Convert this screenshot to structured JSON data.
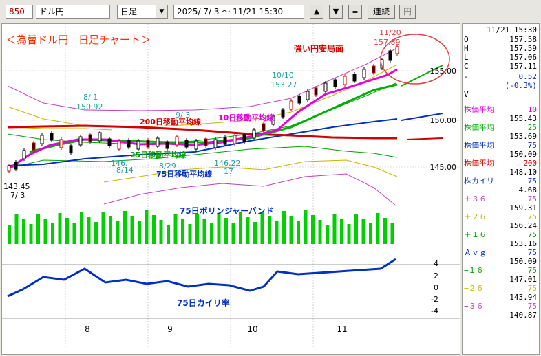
{
  "toolbar": {
    "code": "850",
    "pair": "ドル円",
    "period": "日足",
    "range": "2025/ 7/ 3 〜 11/21 15:30",
    "up_label": "▲",
    "down_label": "▼",
    "menu_label": "≡",
    "continuous_label": "連続",
    "yen_label": "円"
  },
  "panel": {
    "timestamp": "11/21 15:30",
    "ohlc": [
      {
        "k": "O",
        "v": "157.58"
      },
      {
        "k": "H",
        "v": "157.59"
      },
      {
        "k": "L",
        "v": "157.06"
      },
      {
        "k": "C",
        "v": "157.11"
      },
      {
        "k": "V",
        "v": ""
      }
    ],
    "change": "0.52",
    "change_pct": "(-0.3%)",
    "v_label": "V",
    "indicators": [
      {
        "label": "株価平均",
        "param": "10",
        "value": "155.43",
        "color": "#e000e0"
      },
      {
        "label": "株価平均",
        "param": "25",
        "value": "153.69",
        "color": "#00b000"
      },
      {
        "label": "株価平均",
        "param": "75",
        "value": "150.09",
        "color": "#0030c0"
      },
      {
        "label": "株価平均",
        "param": "200",
        "value": "148.10",
        "color": "#d00000"
      },
      {
        "label": "株カイリ",
        "param": "75",
        "value": "4.68",
        "color": "#0030c0"
      },
      {
        "label": "＋３６",
        "param": "75",
        "value": "159.31",
        "color": "#c040c0"
      },
      {
        "label": "＋２６",
        "param": "75",
        "value": "156.24",
        "color": "#c8b400"
      },
      {
        "label": "＋１６",
        "param": "75",
        "value": "153.16",
        "color": "#00a000"
      },
      {
        "label": "Ａｖｇ",
        "param": "75",
        "value": "150.09",
        "color": "#0030c0"
      },
      {
        "label": "−１６",
        "param": "75",
        "value": "147.01",
        "color": "#00a000"
      },
      {
        "label": "−２６",
        "param": "75",
        "value": "143.94",
        "color": "#c8b400"
      },
      {
        "label": "−３６",
        "param": "75",
        "value": "140.87",
        "color": "#c040c0"
      }
    ]
  },
  "chart_data": {
    "type": "line",
    "title": "＜為替ドル円　日足チャート＞",
    "y_ticks": [
      "155.00",
      "150.00",
      "145.00"
    ],
    "kairi_ticks": [
      "4",
      "2",
      "0",
      "-2",
      "-4"
    ],
    "x_ticks": [
      "8",
      "9",
      "10",
      "11"
    ],
    "annotations": {
      "trend": "強い円安局面",
      "ma10": "10日移動平均線",
      "ma25": "25日移動平均線",
      "ma75": "75日移動平均線",
      "ma200": "200日移動平均線",
      "bollinger": "75日ボリンジャーバンド",
      "kairi": "75日カイリ率"
    },
    "price_labels": [
      {
        "text": "143.45",
        "date": "7/3"
      },
      {
        "text": "7/ 3",
        "date": "7/3"
      },
      {
        "text": "8/ 1",
        "date": "8/1"
      },
      {
        "text": "150.92",
        "date": "8/1"
      },
      {
        "text": "146.",
        "date": "8/14"
      },
      {
        "text": "8/14",
        "date": "8/14"
      },
      {
        "text": "9/ 3",
        "date": "9/3"
      },
      {
        "text": "8/29",
        "date": "8/29"
      },
      {
        "text": "146.22",
        "date": "9/17"
      },
      {
        "text": "17",
        "date": "9/17"
      },
      {
        "text": "10/10",
        "date": "10/10"
      },
      {
        "text": "153.27",
        "date": "10/10"
      },
      {
        "text": "11/20",
        "date": "11/20"
      },
      {
        "text": "157.89",
        "date": "11/20"
      }
    ]
  }
}
